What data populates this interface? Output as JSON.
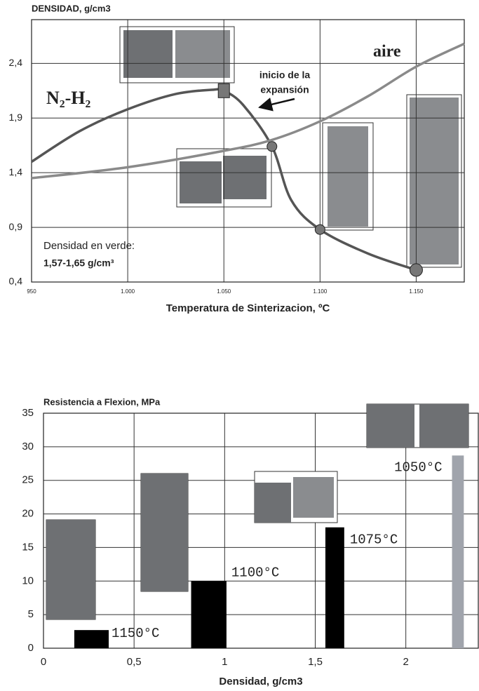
{
  "chart_data": [
    {
      "type": "line",
      "title": "DENSIDAD, g/cm3",
      "x_label": "Temperatura de Sinterizacion, ºC",
      "xlim": [
        950,
        1175
      ],
      "ylim": [
        0.4,
        2.8
      ],
      "xticks": [
        950,
        {
          "value": 1000,
          "label": "1.000"
        },
        {
          "value": 1050,
          "label": "1.050"
        },
        {
          "value": 1100,
          "label": "1.100"
        },
        {
          "value": 1150,
          "label": "1.150"
        }
      ],
      "yticks": [
        {
          "value": 0.4,
          "label": "0,4"
        },
        {
          "value": 0.9,
          "label": "0,9"
        },
        {
          "value": 1.4,
          "label": "1,4"
        },
        {
          "value": 1.9,
          "label": "1,9"
        },
        {
          "value": 2.4,
          "label": "2,4"
        }
      ],
      "grid": true,
      "series": [
        {
          "name": "N₂-H₂",
          "color": "#555555",
          "x": [
            950,
            975,
            1000,
            1025,
            1045,
            1050,
            1060,
            1075,
            1085,
            1100,
            1125,
            1150
          ],
          "values": [
            1.5,
            1.78,
            1.98,
            2.12,
            2.16,
            2.15,
            2.02,
            1.64,
            1.15,
            0.88,
            0.66,
            0.51
          ],
          "markers": [
            "none",
            "none",
            "none",
            "none",
            "none",
            "square",
            "none",
            "circle",
            "none",
            "circle",
            "none",
            "circle"
          ]
        },
        {
          "name": "aire",
          "color": "#8a8a8a",
          "x": [
            950,
            1000,
            1050,
            1075,
            1100,
            1125,
            1150,
            1175
          ],
          "values": [
            1.35,
            1.45,
            1.6,
            1.7,
            1.87,
            2.1,
            2.37,
            2.58
          ],
          "markers": [
            "none",
            "none",
            "none",
            "none",
            "none",
            "none",
            "none",
            "none"
          ]
        }
      ],
      "annotations": [
        "inicio de la",
        "expansión",
        "Densidad en verde:",
        "1,57-1,65 g/cm³"
      ]
    },
    {
      "type": "range_bar",
      "title": "Resistencia a Flexion, MPa",
      "x_label": "Densidad, g/cm3",
      "xlim": [
        0,
        2.4
      ],
      "ylim": [
        0,
        35
      ],
      "xticks": [
        0,
        {
          "value": 0.5,
          "label": "0,5"
        },
        1,
        {
          "value": 1.5,
          "label": "1,5"
        },
        2
      ],
      "yticks": [
        0,
        5,
        10,
        15,
        20,
        25,
        30,
        35
      ],
      "grid": true,
      "categories": [
        "1150°C",
        "1100°C",
        "1075°C",
        "1050°C"
      ],
      "x_ranges": [
        [
          0.17,
          0.36
        ],
        [
          0.815,
          1.01
        ],
        [
          1.556,
          1.66
        ],
        [
          2.255,
          2.32
        ]
      ],
      "values": [
        2.7,
        10,
        18,
        28.7
      ],
      "colors": [
        "#000000",
        "#000000",
        "#000000",
        "#a0a4ac"
      ]
    }
  ]
}
